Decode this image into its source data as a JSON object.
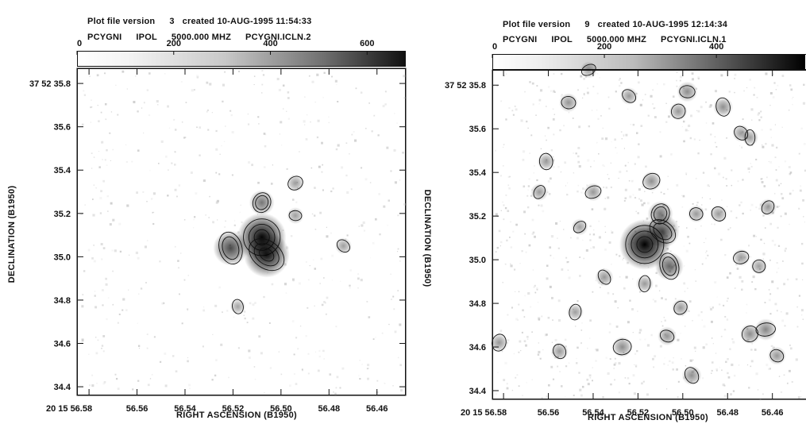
{
  "chart_data": [
    {
      "type": "heatmap",
      "header": {
        "line1": [
          "Plot file version",
          "3",
          "created 10-AUG-1995 11:54:33"
        ],
        "line2": [
          "PCYGNI",
          "IPOL",
          "5000.000 MHZ",
          "PCYGNI.ICLN.2"
        ]
      },
      "colorbar": {
        "min": 0,
        "max": 680,
        "ticks": [
          0,
          200,
          400,
          600
        ]
      },
      "xlabel": "RIGHT ASCENSION (B1950)",
      "ylabel": "DECLINATION (B1950)",
      "x_ticks": [
        "20 15 56.58",
        "56.56",
        "56.54",
        "56.52",
        "56.50",
        "56.48",
        "56.46"
      ],
      "x_tick_values": [
        56.58,
        56.56,
        56.54,
        56.52,
        56.5,
        56.48,
        56.46
      ],
      "y_ticks": [
        "37 52 35.8",
        "35.6",
        "35.4",
        "35.2",
        "35.0",
        "34.8",
        "34.6",
        "34.4"
      ],
      "y_tick_values": [
        35.8,
        35.6,
        35.4,
        35.2,
        35.0,
        34.8,
        34.6,
        34.4
      ],
      "xlim": [
        56.585,
        56.448
      ],
      "ylim": [
        34.36,
        35.87
      ],
      "blobs": [
        {
          "x": 56.508,
          "y": 35.09,
          "peak": 650
        },
        {
          "x": 56.506,
          "y": 35.01,
          "peak": 600
        },
        {
          "x": 56.521,
          "y": 35.04,
          "peak": 420
        },
        {
          "x": 56.508,
          "y": 35.25,
          "peak": 260
        },
        {
          "x": 56.494,
          "y": 35.34,
          "peak": 130
        },
        {
          "x": 56.494,
          "y": 35.19,
          "peak": 120
        },
        {
          "x": 56.474,
          "y": 35.05,
          "peak": 120
        },
        {
          "x": 56.518,
          "y": 34.77,
          "peak": 100
        }
      ]
    },
    {
      "type": "heatmap",
      "header": {
        "line1": [
          "Plot file version",
          "9",
          "created 10-AUG-1995 12:14:34"
        ],
        "line2": [
          "PCYGNI",
          "IPOL",
          "5000.000 MHZ",
          "PCYGNI.ICLN.1"
        ]
      },
      "colorbar": {
        "min": 0,
        "max": 560,
        "ticks": [
          0,
          200,
          400
        ]
      },
      "xlabel": "RIGHT ASCENSION (B1950)",
      "ylabel": "DECLINATION (B1950)",
      "x_ticks": [
        "20 15 56.58",
        "56.56",
        "56.54",
        "56.52",
        "56.50",
        "56.48",
        "56.46"
      ],
      "x_tick_values": [
        56.58,
        56.56,
        56.54,
        56.52,
        56.5,
        56.48,
        56.46
      ],
      "y_ticks": [
        "37 52 35.8",
        "35.6",
        "35.4",
        "35.2",
        "35.0",
        "34.8",
        "34.6",
        "34.4"
      ],
      "y_tick_values": [
        35.8,
        35.6,
        35.4,
        35.2,
        35.0,
        34.8,
        34.6,
        34.4
      ],
      "xlim": [
        56.585,
        56.445
      ],
      "ylim": [
        34.36,
        35.87
      ],
      "blobs": [
        {
          "x": 56.517,
          "y": 35.07,
          "peak": 560
        },
        {
          "x": 56.509,
          "y": 35.13,
          "peak": 330
        },
        {
          "x": 56.506,
          "y": 34.97,
          "peak": 260
        },
        {
          "x": 56.51,
          "y": 35.21,
          "peak": 220
        },
        {
          "x": 56.514,
          "y": 35.36,
          "peak": 140
        },
        {
          "x": 56.498,
          "y": 35.77,
          "peak": 150
        },
        {
          "x": 56.524,
          "y": 35.75,
          "peak": 110
        },
        {
          "x": 56.482,
          "y": 35.7,
          "peak": 140
        },
        {
          "x": 56.502,
          "y": 35.68,
          "peak": 120
        },
        {
          "x": 56.542,
          "y": 35.87,
          "peak": 100
        },
        {
          "x": 56.551,
          "y": 35.72,
          "peak": 130
        },
        {
          "x": 56.474,
          "y": 35.58,
          "peak": 110
        },
        {
          "x": 56.561,
          "y": 35.45,
          "peak": 110
        },
        {
          "x": 56.564,
          "y": 35.31,
          "peak": 110
        },
        {
          "x": 56.54,
          "y": 35.31,
          "peak": 120
        },
        {
          "x": 56.494,
          "y": 35.21,
          "peak": 110
        },
        {
          "x": 56.484,
          "y": 35.21,
          "peak": 110
        },
        {
          "x": 56.47,
          "y": 35.56,
          "peak": 100
        },
        {
          "x": 56.462,
          "y": 35.24,
          "peak": 110
        },
        {
          "x": 56.474,
          "y": 35.01,
          "peak": 110
        },
        {
          "x": 56.466,
          "y": 34.97,
          "peak": 100
        },
        {
          "x": 56.535,
          "y": 34.92,
          "peak": 120
        },
        {
          "x": 56.517,
          "y": 34.89,
          "peak": 110
        },
        {
          "x": 56.501,
          "y": 34.78,
          "peak": 110
        },
        {
          "x": 56.527,
          "y": 34.6,
          "peak": 150
        },
        {
          "x": 56.507,
          "y": 34.65,
          "peak": 130
        },
        {
          "x": 56.496,
          "y": 34.47,
          "peak": 140
        },
        {
          "x": 56.548,
          "y": 34.76,
          "peak": 100
        },
        {
          "x": 56.47,
          "y": 34.66,
          "peak": 150
        },
        {
          "x": 56.463,
          "y": 34.68,
          "peak": 170
        },
        {
          "x": 56.458,
          "y": 34.56,
          "peak": 120
        },
        {
          "x": 56.555,
          "y": 34.58,
          "peak": 110
        },
        {
          "x": 56.582,
          "y": 34.62,
          "peak": 120
        },
        {
          "x": 56.546,
          "y": 35.15,
          "peak": 100
        }
      ]
    }
  ]
}
